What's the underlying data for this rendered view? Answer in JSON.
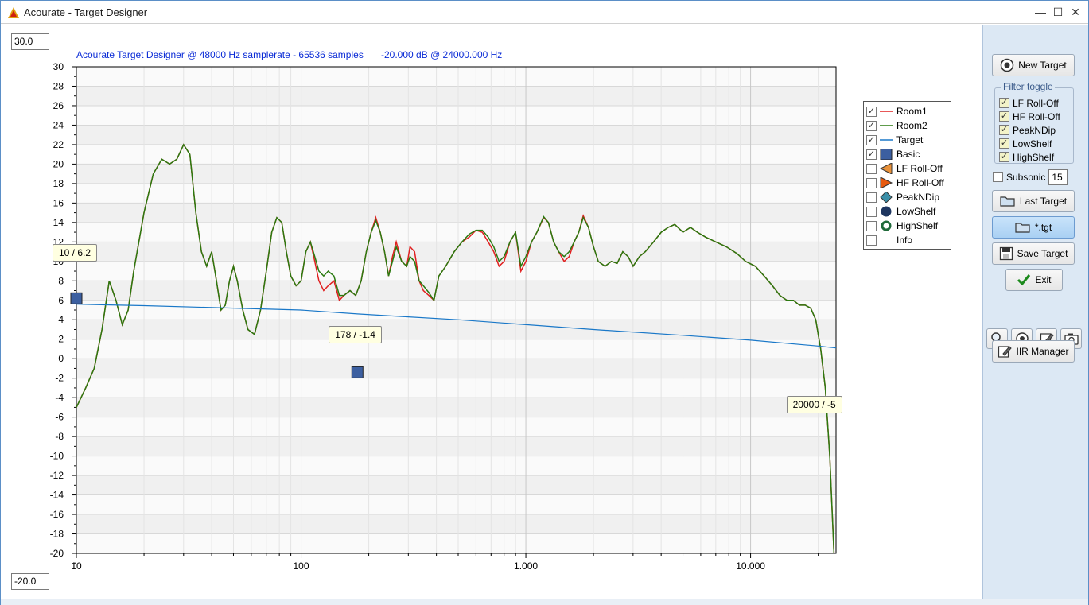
{
  "window": {
    "title": "Acourate - Target Designer",
    "controls": [
      "minimize",
      "maximize",
      "close"
    ]
  },
  "header": {
    "info_left": "Acourate Target Designer @ 48000 Hz samplerate - 65536 samples",
    "info_right": "-20.000 dB @ 24000.000 Hz"
  },
  "range": {
    "top_value": "30.0",
    "bottom_value": "-20.0"
  },
  "chart_data": {
    "type": "line",
    "xscale": "log",
    "xlim": [
      10,
      24000
    ],
    "ylim": [
      -20,
      30
    ],
    "y_ticks": [
      "30",
      "28",
      "26",
      "24",
      "22",
      "20",
      "18",
      "16",
      "14",
      "12",
      "10",
      "8",
      "6",
      "4",
      "2",
      "0",
      "-2",
      "-4",
      "-6",
      "-8",
      "-10",
      "-12",
      "-14",
      "-16",
      "-18",
      "-20"
    ],
    "x_ticks": [
      {
        "value": 10,
        "label": "10"
      },
      {
        "value": 100,
        "label": "100"
      },
      {
        "value": 1000,
        "label": "1.000"
      },
      {
        "value": 10000,
        "label": "10.000"
      }
    ],
    "grid": true,
    "series": [
      {
        "name": "Room1",
        "color": "#e02020",
        "points": [
          [
            10,
            -5
          ],
          [
            11,
            -3
          ],
          [
            12,
            -1
          ],
          [
            13,
            3
          ],
          [
            14,
            8
          ],
          [
            15,
            6
          ],
          [
            16,
            3.5
          ],
          [
            17,
            5
          ],
          [
            18,
            9
          ],
          [
            20,
            15
          ],
          [
            22,
            19
          ],
          [
            24,
            20.5
          ],
          [
            26,
            20
          ],
          [
            28,
            20.5
          ],
          [
            30,
            22
          ],
          [
            32,
            21
          ],
          [
            34,
            15
          ],
          [
            36,
            11
          ],
          [
            38,
            9.5
          ],
          [
            40,
            11
          ],
          [
            42,
            8
          ],
          [
            44,
            5
          ],
          [
            46,
            5.5
          ],
          [
            48,
            8
          ],
          [
            50,
            9.5
          ],
          [
            52,
            8
          ],
          [
            55,
            5
          ],
          [
            58,
            3
          ],
          [
            62,
            2.5
          ],
          [
            66,
            5
          ],
          [
            70,
            9
          ],
          [
            74,
            13
          ],
          [
            78,
            14.5
          ],
          [
            82,
            14
          ],
          [
            86,
            11
          ],
          [
            90,
            8.5
          ],
          [
            95,
            7.5
          ],
          [
            100,
            8
          ],
          [
            105,
            11
          ],
          [
            110,
            12
          ],
          [
            115,
            10
          ],
          [
            120,
            8
          ],
          [
            126,
            7
          ],
          [
            132,
            7.5
          ],
          [
            140,
            8
          ],
          [
            148,
            6
          ],
          [
            155,
            6.5
          ],
          [
            165,
            7
          ],
          [
            175,
            6.5
          ],
          [
            185,
            8
          ],
          [
            195,
            11
          ],
          [
            205,
            13
          ],
          [
            215,
            14.5
          ],
          [
            225,
            13
          ],
          [
            235,
            11
          ],
          [
            245,
            8.5
          ],
          [
            255,
            10.5
          ],
          [
            265,
            12
          ],
          [
            280,
            10
          ],
          [
            295,
            9.5
          ],
          [
            305,
            11.5
          ],
          [
            320,
            11
          ],
          [
            335,
            8
          ],
          [
            350,
            7
          ],
          [
            370,
            6.5
          ],
          [
            390,
            6
          ],
          [
            410,
            8.5
          ],
          [
            440,
            9.5
          ],
          [
            480,
            11
          ],
          [
            520,
            12
          ],
          [
            560,
            12.5
          ],
          [
            600,
            13.2
          ],
          [
            640,
            13
          ],
          [
            680,
            12
          ],
          [
            720,
            11
          ],
          [
            760,
            9.5
          ],
          [
            800,
            10
          ],
          [
            850,
            12
          ],
          [
            900,
            13
          ],
          [
            950,
            9
          ],
          [
            1000,
            10
          ],
          [
            1060,
            12
          ],
          [
            1120,
            13
          ],
          [
            1200,
            14.5
          ],
          [
            1260,
            14
          ],
          [
            1330,
            12
          ],
          [
            1400,
            11
          ],
          [
            1480,
            10
          ],
          [
            1560,
            10.5
          ],
          [
            1640,
            12
          ],
          [
            1720,
            13
          ],
          [
            1800,
            14.7
          ],
          [
            1900,
            13.5
          ],
          [
            2000,
            11.5
          ],
          [
            2100,
            10
          ],
          [
            2250,
            9.5
          ],
          [
            2400,
            10
          ],
          [
            2550,
            9.8
          ],
          [
            2700,
            11
          ],
          [
            2850,
            10.5
          ],
          [
            3000,
            9.5
          ],
          [
            3200,
            10.5
          ],
          [
            3400,
            11
          ],
          [
            3700,
            12
          ],
          [
            4000,
            13
          ],
          [
            4300,
            13.5
          ],
          [
            4600,
            13.8
          ],
          [
            5000,
            13
          ],
          [
            5400,
            13.5
          ],
          [
            5800,
            13
          ],
          [
            6300,
            12.5
          ],
          [
            7000,
            12
          ],
          [
            7800,
            11.5
          ],
          [
            8700,
            10.8
          ],
          [
            9500,
            10
          ],
          [
            10500,
            9.5
          ],
          [
            11500,
            8.5
          ],
          [
            12500,
            7.5
          ],
          [
            13500,
            6.5
          ],
          [
            14500,
            6
          ],
          [
            15500,
            6
          ],
          [
            16500,
            5.5
          ],
          [
            17500,
            5.5
          ],
          [
            18500,
            5.2
          ],
          [
            19500,
            4
          ],
          [
            20500,
            1
          ],
          [
            21500,
            -3
          ],
          [
            22500,
            -10
          ],
          [
            23500,
            -20
          ]
        ]
      },
      {
        "name": "Room2",
        "color": "#2a7a10",
        "points": [
          [
            10,
            -5
          ],
          [
            11,
            -3
          ],
          [
            12,
            -1
          ],
          [
            13,
            3
          ],
          [
            14,
            8
          ],
          [
            15,
            6
          ],
          [
            16,
            3.5
          ],
          [
            17,
            5
          ],
          [
            18,
            9
          ],
          [
            20,
            15
          ],
          [
            22,
            19
          ],
          [
            24,
            20.5
          ],
          [
            26,
            20
          ],
          [
            28,
            20.5
          ],
          [
            30,
            22
          ],
          [
            32,
            21
          ],
          [
            34,
            15
          ],
          [
            36,
            11
          ],
          [
            38,
            9.5
          ],
          [
            40,
            11
          ],
          [
            42,
            8
          ],
          [
            44,
            5
          ],
          [
            46,
            5.5
          ],
          [
            48,
            8
          ],
          [
            50,
            9.5
          ],
          [
            52,
            8
          ],
          [
            55,
            5
          ],
          [
            58,
            3
          ],
          [
            62,
            2.5
          ],
          [
            66,
            5
          ],
          [
            70,
            9
          ],
          [
            74,
            13
          ],
          [
            78,
            14.5
          ],
          [
            82,
            14
          ],
          [
            86,
            11
          ],
          [
            90,
            8.5
          ],
          [
            95,
            7.5
          ],
          [
            100,
            8
          ],
          [
            105,
            11
          ],
          [
            110,
            12
          ],
          [
            115,
            10.5
          ],
          [
            120,
            9
          ],
          [
            126,
            8.5
          ],
          [
            132,
            9
          ],
          [
            140,
            8.5
          ],
          [
            148,
            6.5
          ],
          [
            155,
            6.5
          ],
          [
            165,
            7
          ],
          [
            175,
            6.5
          ],
          [
            185,
            8
          ],
          [
            195,
            11
          ],
          [
            205,
            13
          ],
          [
            215,
            14.2
          ],
          [
            225,
            13
          ],
          [
            235,
            11
          ],
          [
            245,
            8.5
          ],
          [
            255,
            10
          ],
          [
            265,
            11.5
          ],
          [
            280,
            10
          ],
          [
            295,
            9.5
          ],
          [
            305,
            10.5
          ],
          [
            320,
            10
          ],
          [
            335,
            8
          ],
          [
            350,
            7.5
          ],
          [
            370,
            6.8
          ],
          [
            390,
            6
          ],
          [
            410,
            8.5
          ],
          [
            440,
            9.5
          ],
          [
            480,
            11
          ],
          [
            520,
            12
          ],
          [
            560,
            12.8
          ],
          [
            600,
            13.2
          ],
          [
            640,
            13.2
          ],
          [
            680,
            12.5
          ],
          [
            720,
            11.5
          ],
          [
            760,
            10
          ],
          [
            800,
            10.5
          ],
          [
            850,
            12
          ],
          [
            900,
            13
          ],
          [
            950,
            9.5
          ],
          [
            1000,
            10.5
          ],
          [
            1060,
            12
          ],
          [
            1120,
            13
          ],
          [
            1200,
            14.6
          ],
          [
            1260,
            14
          ],
          [
            1330,
            12
          ],
          [
            1400,
            11
          ],
          [
            1480,
            10.5
          ],
          [
            1560,
            11
          ],
          [
            1640,
            12
          ],
          [
            1720,
            13
          ],
          [
            1800,
            14.5
          ],
          [
            1900,
            13.5
          ],
          [
            2000,
            11.5
          ],
          [
            2100,
            10
          ],
          [
            2250,
            9.5
          ],
          [
            2400,
            10
          ],
          [
            2550,
            9.8
          ],
          [
            2700,
            11
          ],
          [
            2850,
            10.5
          ],
          [
            3000,
            9.5
          ],
          [
            3200,
            10.5
          ],
          [
            3400,
            11
          ],
          [
            3700,
            12
          ],
          [
            4000,
            13
          ],
          [
            4300,
            13.5
          ],
          [
            4600,
            13.8
          ],
          [
            5000,
            13
          ],
          [
            5400,
            13.5
          ],
          [
            5800,
            13
          ],
          [
            6300,
            12.5
          ],
          [
            7000,
            12
          ],
          [
            7800,
            11.5
          ],
          [
            8700,
            10.8
          ],
          [
            9500,
            10
          ],
          [
            10500,
            9.5
          ],
          [
            11500,
            8.5
          ],
          [
            12500,
            7.5
          ],
          [
            13500,
            6.5
          ],
          [
            14500,
            6
          ],
          [
            15500,
            6
          ],
          [
            16500,
            5.5
          ],
          [
            17500,
            5.5
          ],
          [
            18500,
            5.2
          ],
          [
            19500,
            4
          ],
          [
            20500,
            1
          ],
          [
            21500,
            -3
          ],
          [
            22500,
            -10
          ],
          [
            23500,
            -20
          ]
        ]
      },
      {
        "name": "Target",
        "color": "#1a78c8",
        "points": [
          [
            10,
            5.6
          ],
          [
            20,
            5.45
          ],
          [
            50,
            5.2
          ],
          [
            100,
            5.0
          ],
          [
            178,
            4.6
          ],
          [
            300,
            4.3
          ],
          [
            500,
            4.0
          ],
          [
            1000,
            3.5
          ],
          [
            2000,
            3.0
          ],
          [
            5000,
            2.4
          ],
          [
            10000,
            1.9
          ],
          [
            20000,
            1.3
          ],
          [
            24000,
            1.1
          ]
        ]
      }
    ],
    "markers": [
      {
        "x": 10,
        "y": 6.2,
        "label": "10 / 6.2"
      },
      {
        "x": 178,
        "y": -1.4,
        "label": "178 / -1.4"
      },
      {
        "x": 20000,
        "y": -5,
        "label": "20000 / -5"
      }
    ],
    "legend_position": "top-right"
  },
  "legend": {
    "items": [
      {
        "label": "Room1",
        "checked": true,
        "symbol": "line",
        "color": "#e02020"
      },
      {
        "label": "Room2",
        "checked": true,
        "symbol": "line",
        "color": "#2a7a10"
      },
      {
        "label": "Target",
        "checked": true,
        "symbol": "line",
        "color": "#1a78c8"
      },
      {
        "label": "Basic",
        "checked": true,
        "symbol": "square",
        "color": "#3c5fa0"
      },
      {
        "label": "LF Roll-Off",
        "checked": false,
        "symbol": "triangle-left",
        "color": "#e8913a"
      },
      {
        "label": "HF Roll-Off",
        "checked": false,
        "symbol": "triangle-right",
        "color": "#e85a10"
      },
      {
        "label": "PeakNDip",
        "checked": false,
        "symbol": "diamond",
        "color": "#3a8fa8"
      },
      {
        "label": "LowShelf",
        "checked": false,
        "symbol": "circle",
        "color": "#1e3660"
      },
      {
        "label": "HighShelf",
        "checked": false,
        "symbol": "ring",
        "color": "#1f6a3a"
      },
      {
        "label": "Info",
        "checked": false,
        "symbol": "none",
        "color": "#000000"
      }
    ]
  },
  "sidebar": {
    "new_target": "New Target",
    "filter_toggle_title": "Filter toggle",
    "filters": [
      {
        "label": "LF Roll-Off",
        "checked": true
      },
      {
        "label": "HF Roll-Off",
        "checked": true
      },
      {
        "label": "PeakNDip",
        "checked": true
      },
      {
        "label": "LowShelf",
        "checked": true
      },
      {
        "label": "HighShelf",
        "checked": true
      }
    ],
    "subsonic_label": "Subsonic",
    "subsonic_checked": false,
    "subsonic_value": "15",
    "last_target": "Last Target",
    "tgt": "*.tgt",
    "save_target": "Save Target",
    "exit": "Exit",
    "iir_manager": "IIR Manager"
  }
}
